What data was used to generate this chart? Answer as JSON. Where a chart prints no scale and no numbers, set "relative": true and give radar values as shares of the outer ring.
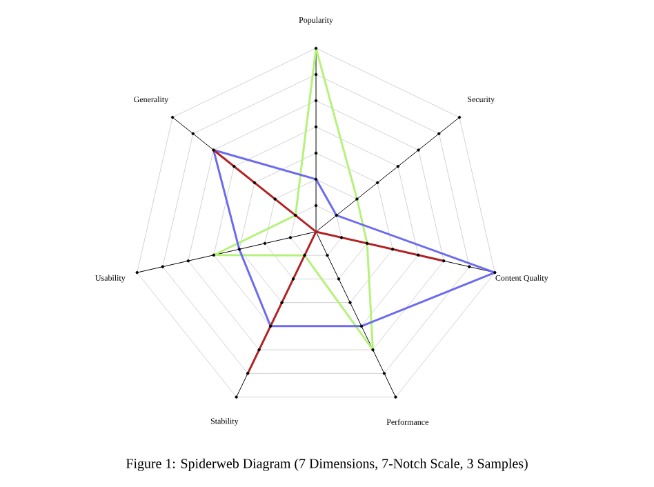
{
  "chart_data": {
    "type": "radar",
    "title": "Figure 1: Spiderweb Diagram (7 Dimensions, 7-Notch Scale, 3 Samples)",
    "categories": [
      "Popularity",
      "Security",
      "Content Quality",
      "Performance",
      "Stability",
      "Usability",
      "Generality"
    ],
    "relative": true,
    "grid": true,
    "series": [
      {
        "color": "#b5f27a",
        "values": [
          1,
          0.286,
          0.286,
          0.714,
          0.143,
          0.571,
          0.143
        ]
      },
      {
        "color": "#6b6bf0",
        "values": [
          0.286,
          0.143,
          1,
          0.571,
          0.571,
          0.429,
          0.714
        ]
      },
      {
        "color": "#b22222",
        "values": [
          0,
          0,
          0.714,
          0,
          0.857,
          0,
          0.714
        ]
      }
    ]
  }
}
